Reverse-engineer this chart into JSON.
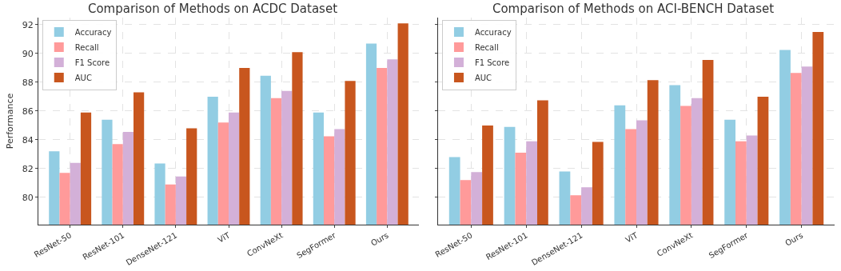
{
  "chart_data": [
    {
      "type": "bar",
      "title": "Comparison of Methods on ACDC Dataset",
      "ylabel": "Performance",
      "categories": [
        "ResNet-50",
        "ResNet-101",
        "DenseNet-121",
        "ViT",
        "ConvNeXt",
        "SegFormer",
        "Ours"
      ],
      "series": [
        {
          "name": "Accuracy",
          "color": "#92cde3",
          "values": [
            83.2,
            85.4,
            82.35,
            87.0,
            88.45,
            85.9,
            90.7
          ]
        },
        {
          "name": "Recall",
          "color": "#ff9a9a",
          "values": [
            81.7,
            83.7,
            80.9,
            85.2,
            86.9,
            84.25,
            89.0
          ]
        },
        {
          "name": "F1 Score",
          "color": "#d3b0d8",
          "values": [
            82.4,
            84.55,
            81.45,
            85.9,
            87.4,
            84.75,
            89.6
          ]
        },
        {
          "name": "AUC",
          "color": "#c8561e",
          "values": [
            85.9,
            87.3,
            84.8,
            89.0,
            90.1,
            88.1,
            92.1
          ]
        }
      ],
      "ylim": [
        78.1,
        92.5
      ],
      "yticks": [
        80,
        82,
        84,
        86,
        88,
        90,
        92
      ],
      "grid": true,
      "legend": "top left"
    },
    {
      "type": "bar",
      "title": "Comparison of Methods on ACI-BENCH Dataset",
      "categories": [
        "ResNet-50",
        "ResNet-101",
        "DenseNet-121",
        "ViT",
        "ConvNeXt",
        "SegFormer",
        "Ours"
      ],
      "series": [
        {
          "name": "Accuracy",
          "color": "#92cde3",
          "values": [
            82.8,
            84.9,
            81.8,
            86.4,
            87.8,
            85.4,
            90.25
          ]
        },
        {
          "name": "Recall",
          "color": "#ff9a9a",
          "values": [
            81.2,
            83.1,
            80.15,
            84.75,
            86.35,
            83.9,
            88.65
          ]
        },
        {
          "name": "F1 Score",
          "color": "#d3b0d8",
          "values": [
            81.75,
            83.9,
            80.7,
            85.35,
            86.9,
            84.3,
            89.1
          ]
        },
        {
          "name": "AUC",
          "color": "#c8561e",
          "values": [
            85.0,
            86.75,
            83.85,
            88.15,
            89.55,
            87.0,
            91.5
          ]
        }
      ],
      "ylim": [
        78.1,
        92.5
      ],
      "yticks": [
        80,
        82,
        84,
        86,
        88,
        90,
        92
      ],
      "grid": true,
      "legend": "top left",
      "tick_labels": "x"
    }
  ]
}
